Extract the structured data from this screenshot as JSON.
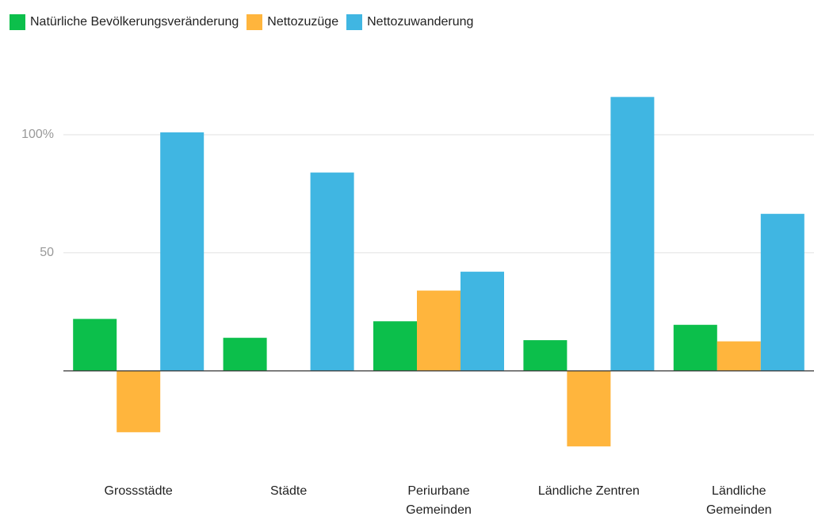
{
  "chart_data": {
    "type": "bar",
    "categories": [
      "Grossstädte",
      "Städte",
      "Periurbane Gemeinden",
      "Ländliche Zentren",
      "Ländliche Gemeinden"
    ],
    "series": [
      {
        "name": "Natürliche Bevölkerungsveränderung",
        "color": "#0cbf4b",
        "values": [
          22,
          14,
          21,
          13,
          19.5
        ]
      },
      {
        "name": "Nettozuzüge",
        "color": "#ffb53d",
        "values": [
          -26,
          0,
          34,
          -32,
          12.5
        ]
      },
      {
        "name": "Nettozuwanderung",
        "color": "#40b6e2",
        "values": [
          101,
          84,
          42,
          116,
          66.5
        ]
      }
    ],
    "ylim": [
      -40,
      125
    ],
    "yticks": [
      50,
      {
        "value": 100,
        "label": "100%"
      }
    ],
    "grid": true,
    "legend": "top"
  }
}
